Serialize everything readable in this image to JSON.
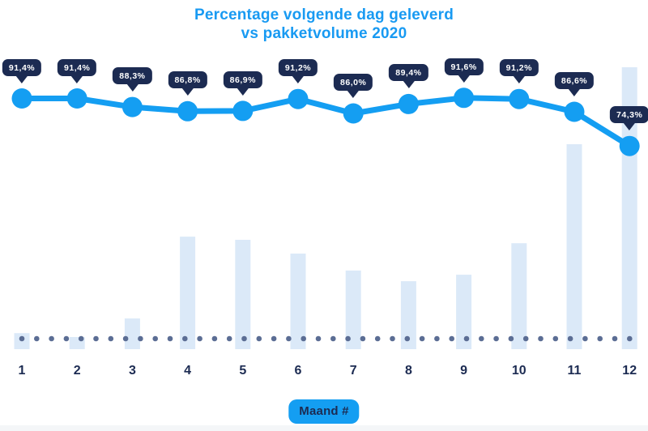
{
  "title": {
    "line1": "Percentage volgende dag geleverd",
    "line2": "vs pakketvolume 2020"
  },
  "x_axis": {
    "ticks": [
      "1",
      "2",
      "3",
      "4",
      "5",
      "6",
      "7",
      "8",
      "9",
      "10",
      "11",
      "12"
    ],
    "label_badge": "Maand #"
  },
  "chart_data": {
    "type": "line+bar combo",
    "title": "Percentage volgende dag geleverd vs pakketvolume 2020",
    "categories": [
      "1",
      "2",
      "3",
      "4",
      "5",
      "6",
      "7",
      "8",
      "9",
      "10",
      "11",
      "12"
    ],
    "series": [
      {
        "name": "Percentage volgende dag geleverd",
        "type": "line",
        "unit": "%",
        "values": [
          91.4,
          91.4,
          88.3,
          86.8,
          86.9,
          91.2,
          86.0,
          89.4,
          91.6,
          91.2,
          86.6,
          74.3
        ],
        "labels": [
          "91,4%",
          "91,4%",
          "88,3%",
          "86,8%",
          "86,9%",
          "91,2%",
          "86,0%",
          "89,4%",
          "91,6%",
          "91,2%",
          "86,6%",
          "74,3%"
        ]
      },
      {
        "name": "Pakketvolume 2020",
        "type": "bar",
        "values_note": "relative bar heights read from pixels, % of max (no y-axis shown)",
        "values": [
          5.7,
          4.3,
          10.9,
          39.9,
          38.8,
          33.9,
          27.9,
          24.1,
          26.4,
          37.6,
          72.7,
          100
        ]
      }
    ],
    "xlabel": "Maand #",
    "ylabel": "",
    "legend": "none",
    "grid": false,
    "baseline_style": "dotted row of slate dots under bars"
  },
  "colors": {
    "azure_line": "#149EF2",
    "title_blue": "#189AF2",
    "tooltip_navy": "#1C2B52",
    "bar_fill": "#DBE9F8",
    "dotted_baseline": "#5B6D94",
    "bottom_strip": "#F4F6F8",
    "tooltip_text": "#FFFFFF"
  }
}
